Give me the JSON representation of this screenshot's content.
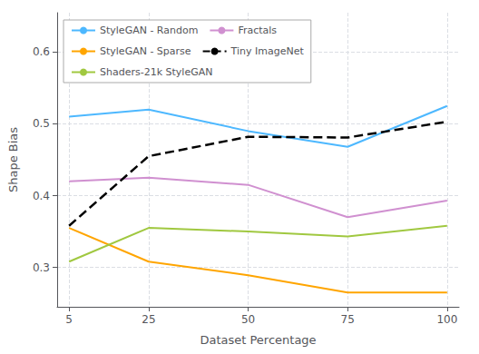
{
  "chart_data": {
    "type": "line",
    "x": [
      5,
      25,
      50,
      75,
      100
    ],
    "xlabel": "Dataset Percentage",
    "ylabel": "Shape Bias",
    "series": [
      {
        "name": "StyleGAN - Random",
        "color": "#4db8ff",
        "line_style": "solid",
        "values": [
          0.51,
          0.52,
          0.49,
          0.468,
          0.525
        ]
      },
      {
        "name": "StyleGAN - Sparse",
        "color": "#ffa500",
        "line_style": "solid",
        "values": [
          0.355,
          0.308,
          0.289,
          0.265,
          0.265
        ]
      },
      {
        "name": "Shaders-21k StyleGAN",
        "color": "#a0c840",
        "line_style": "solid",
        "values": [
          0.308,
          0.355,
          0.35,
          0.343,
          0.358
        ]
      },
      {
        "name": "Fractals",
        "color": "#d090d0",
        "line_style": "solid",
        "values": [
          0.42,
          0.425,
          0.415,
          0.37,
          0.393
        ]
      },
      {
        "name": "Tiny ImageNet",
        "color": "#000000",
        "line_style": "dashed",
        "values": [
          0.358,
          0.455,
          0.482,
          0.481,
          0.503
        ]
      }
    ],
    "xlim": [
      2,
      103
    ],
    "ylim": [
      0.245,
      0.655
    ],
    "xticks": [
      5,
      25,
      50,
      75,
      100
    ],
    "yticks": [
      0.3,
      0.4,
      0.5,
      0.6
    ],
    "grid": true,
    "legend": "upper left"
  }
}
